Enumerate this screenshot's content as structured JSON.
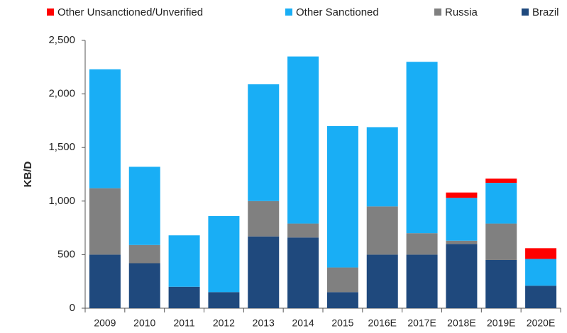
{
  "chart_data": {
    "type": "stacked_bar",
    "y_label": "KB/D",
    "categories": [
      "2009",
      "2010",
      "2011",
      "2012",
      "2013",
      "2014",
      "2015",
      "2016E",
      "2017E",
      "2018E",
      "2019E",
      "2020E"
    ],
    "series": [
      {
        "name": "Other Unsanctioned/Unverified",
        "color": "#ff0000",
        "values": [
          0,
          0,
          0,
          0,
          0,
          0,
          0,
          0,
          0,
          50,
          40,
          100
        ]
      },
      {
        "name": "Other Sanctioned",
        "color": "#19aef5",
        "values": [
          1110,
          730,
          480,
          710,
          1090,
          1560,
          1320,
          740,
          1600,
          400,
          380,
          250
        ]
      },
      {
        "name": "Russia",
        "color": "#808080",
        "values": [
          620,
          170,
          0,
          0,
          330,
          130,
          230,
          450,
          200,
          30,
          340,
          0
        ]
      },
      {
        "name": "Brazil",
        "color": "#1f497d",
        "values": [
          500,
          420,
          200,
          150,
          670,
          660,
          150,
          500,
          500,
          600,
          450,
          210
        ]
      }
    ],
    "ylim": [
      0,
      2500
    ],
    "yticks": [
      0,
      500,
      {
        "value": 1000,
        "label": "1,000"
      },
      {
        "value": 1500,
        "label": "1,500"
      },
      {
        "value": 2000,
        "label": "2,000"
      },
      {
        "value": 2500,
        "label": "2,500"
      }
    ],
    "grid": false
  }
}
